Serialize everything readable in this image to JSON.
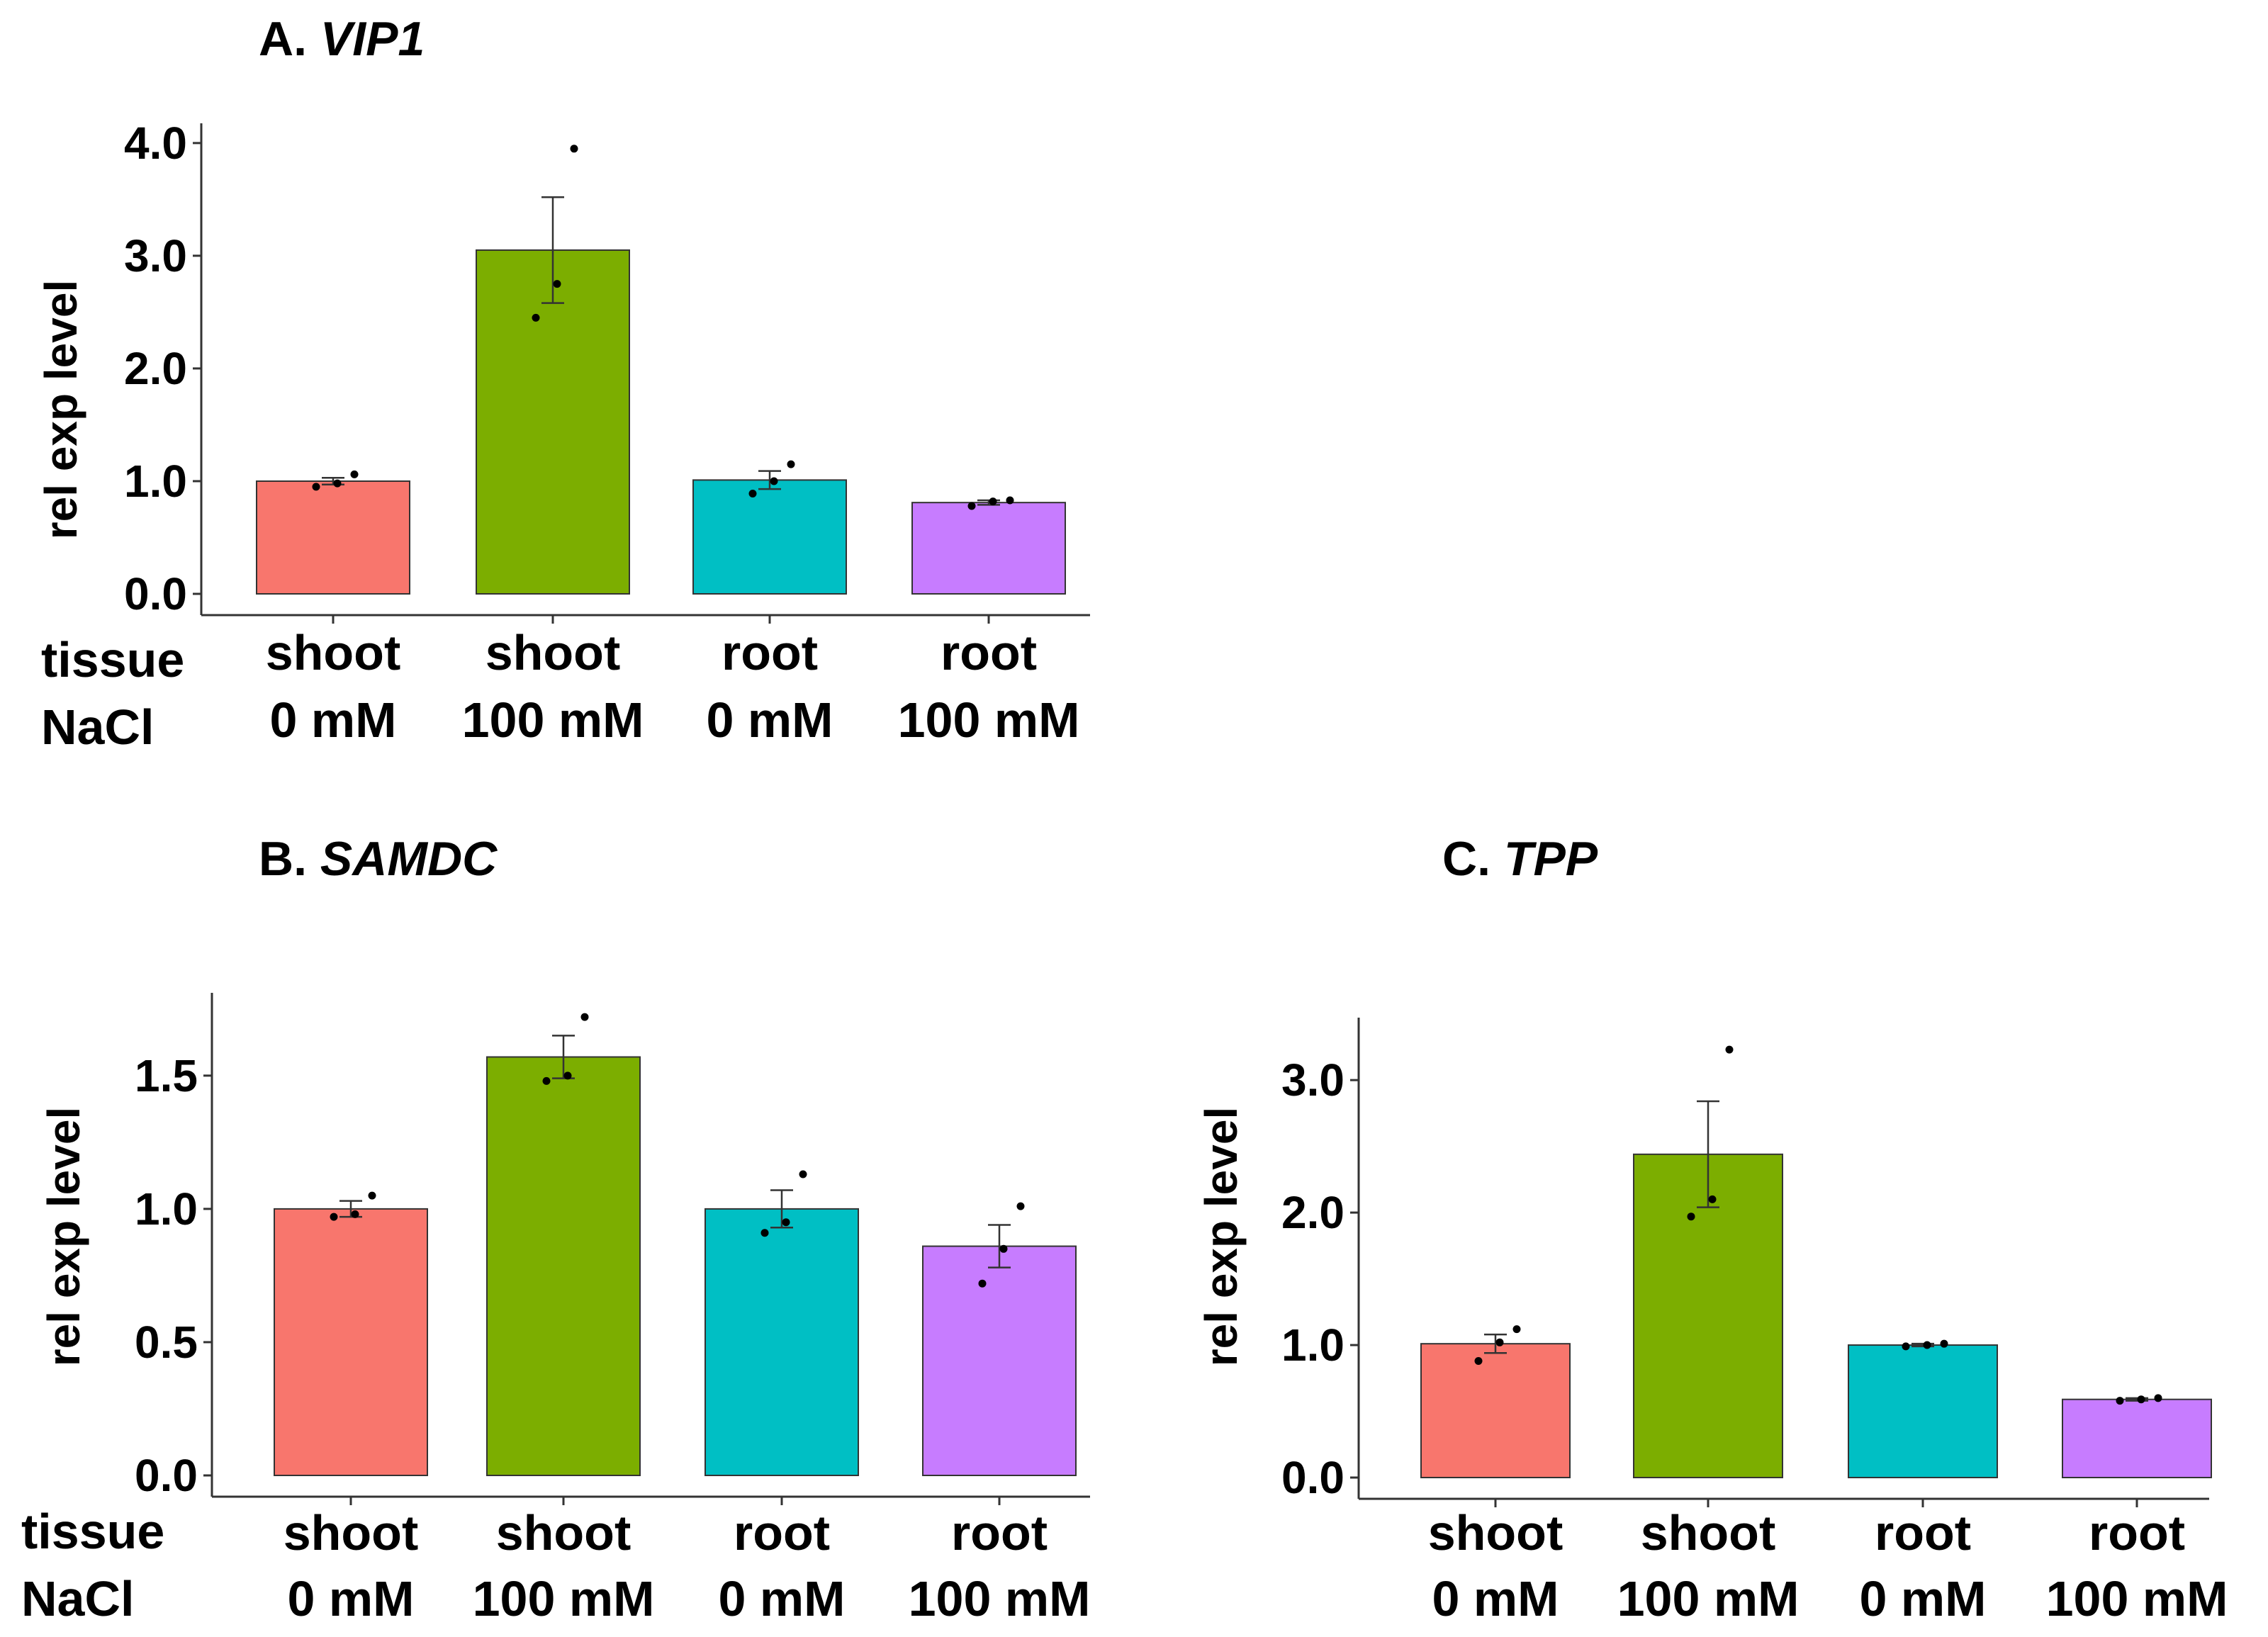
{
  "figure": {
    "factors": {
      "tissue": "tissue",
      "nacl": "NaCl"
    },
    "colors": {
      "shoot_0": "#F8766D",
      "shoot_100": "#7CAE00",
      "root_0": "#00BFC4",
      "root_100": "#C77CFF",
      "axis": "#333333",
      "bar_stroke": "#333333",
      "errorbar": "#333333",
      "point": "#000000"
    }
  },
  "chart_data": [
    {
      "id": "A",
      "type": "bar",
      "title_prefix": "A.",
      "title_gene": "VIP1",
      "ylabel": "rel exp level",
      "xlabel": "",
      "ylim": [
        0,
        4.15
      ],
      "yticks": [
        0.0,
        1.0,
        2.0,
        3.0,
        4.0
      ],
      "yticks_text": [
        "0.0",
        "1.0",
        "2.0",
        "3.0",
        "4.0"
      ],
      "categories": [
        {
          "tissue": "shoot",
          "nacl": "0 mM",
          "color_key": "shoot_0",
          "value": 1.0,
          "se": 0.03,
          "points": [
            0.95,
            0.98,
            1.06
          ]
        },
        {
          "tissue": "shoot",
          "nacl": "100 mM",
          "color_key": "shoot_100",
          "value": 3.05,
          "se": 0.47,
          "points": [
            2.45,
            2.75,
            3.95
          ]
        },
        {
          "tissue": "root",
          "nacl": "0 mM",
          "color_key": "root_0",
          "value": 1.01,
          "se": 0.08,
          "points": [
            0.89,
            1.0,
            1.15
          ]
        },
        {
          "tissue": "root",
          "nacl": "100 mM",
          "color_key": "root_100",
          "value": 0.81,
          "se": 0.02,
          "points": [
            0.78,
            0.82,
            0.83
          ]
        }
      ],
      "show_factor_labels": true
    },
    {
      "id": "B",
      "type": "bar",
      "title_prefix": "B.",
      "title_gene": "SAMDC",
      "ylabel": "rel exp level",
      "xlabel": "",
      "ylim": [
        0,
        1.8
      ],
      "yticks": [
        0.0,
        0.5,
        1.0,
        1.5
      ],
      "yticks_text": [
        "0.0",
        "0.5",
        "1.0",
        "1.5"
      ],
      "categories": [
        {
          "tissue": "shoot",
          "nacl": "0 mM",
          "color_key": "shoot_0",
          "value": 1.0,
          "se": 0.03,
          "points": [
            0.97,
            0.98,
            1.05
          ]
        },
        {
          "tissue": "shoot",
          "nacl": "100 mM",
          "color_key": "shoot_100",
          "value": 1.57,
          "se": 0.08,
          "points": [
            1.48,
            1.5,
            1.72
          ]
        },
        {
          "tissue": "root",
          "nacl": "0 mM",
          "color_key": "root_0",
          "value": 1.0,
          "se": 0.07,
          "points": [
            0.91,
            0.95,
            1.13
          ]
        },
        {
          "tissue": "root",
          "nacl": "100 mM",
          "color_key": "root_100",
          "value": 0.86,
          "se": 0.08,
          "points": [
            0.72,
            0.85,
            1.01
          ]
        }
      ],
      "show_factor_labels": true
    },
    {
      "id": "C",
      "type": "bar",
      "title_prefix": "C.",
      "title_gene": "TPP",
      "ylabel": "rel exp level",
      "xlabel": "",
      "ylim": [
        0,
        3.45
      ],
      "yticks": [
        0.0,
        1.0,
        2.0,
        3.0
      ],
      "yticks_text": [
        "0.0",
        "1.0",
        "2.0",
        "3.0"
      ],
      "categories": [
        {
          "tissue": "shoot",
          "nacl": "0 mM",
          "color_key": "shoot_0",
          "value": 1.01,
          "se": 0.07,
          "points": [
            0.88,
            1.02,
            1.12
          ]
        },
        {
          "tissue": "shoot",
          "nacl": "100 mM",
          "color_key": "shoot_100",
          "value": 2.44,
          "se": 0.4,
          "points": [
            1.97,
            2.1,
            3.23
          ]
        },
        {
          "tissue": "root",
          "nacl": "0 mM",
          "color_key": "root_0",
          "value": 1.0,
          "se": 0.01,
          "points": [
            0.99,
            1.0,
            1.01
          ]
        },
        {
          "tissue": "root",
          "nacl": "100 mM",
          "color_key": "root_100",
          "value": 0.59,
          "se": 0.01,
          "points": [
            0.58,
            0.59,
            0.6
          ]
        }
      ],
      "show_factor_labels": false
    }
  ]
}
